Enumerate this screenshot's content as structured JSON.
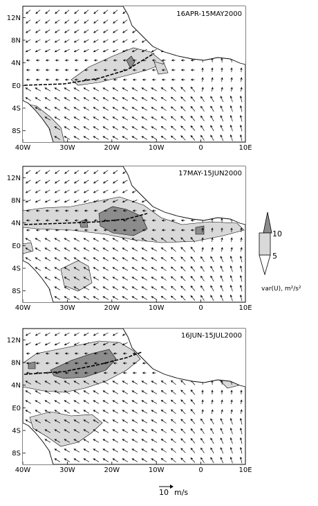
{
  "panels": [
    {
      "date": "16APR-15MAY2000",
      "lat_labels": [
        "12N",
        "8N",
        "4N",
        "E0",
        "4S",
        "8S"
      ],
      "lon_labels": [
        "40W",
        "30W",
        "20W",
        "10W",
        "0",
        "10E"
      ]
    },
    {
      "date": "17MAY-15JUN2000",
      "lat_labels": [
        "12N",
        "8N",
        "4N",
        "E0",
        "4S",
        "8S"
      ],
      "lon_labels": [
        "40W",
        "30W",
        "20W",
        "10W",
        "0",
        "10E"
      ]
    },
    {
      "date": "16JUN-15JUL2000",
      "lat_labels": [
        "12N",
        "8N",
        "4N",
        "E0",
        "4S",
        "8S"
      ],
      "lon_labels": [
        "40W",
        "30W",
        "20W",
        "10W",
        "0",
        "10E"
      ]
    }
  ],
  "colorbar": {
    "levels": [
      "10",
      "5"
    ],
    "label": "var(U),  m²/s²",
    "colors": {
      "dark": "#8c8c8c",
      "light": "#d9d9d9"
    }
  },
  "reference_vector": {
    "value": "10",
    "unit": "m/s"
  },
  "region": {
    "lon_range": [
      -40,
      10
    ],
    "lat_range": [
      -10,
      14
    ]
  }
}
